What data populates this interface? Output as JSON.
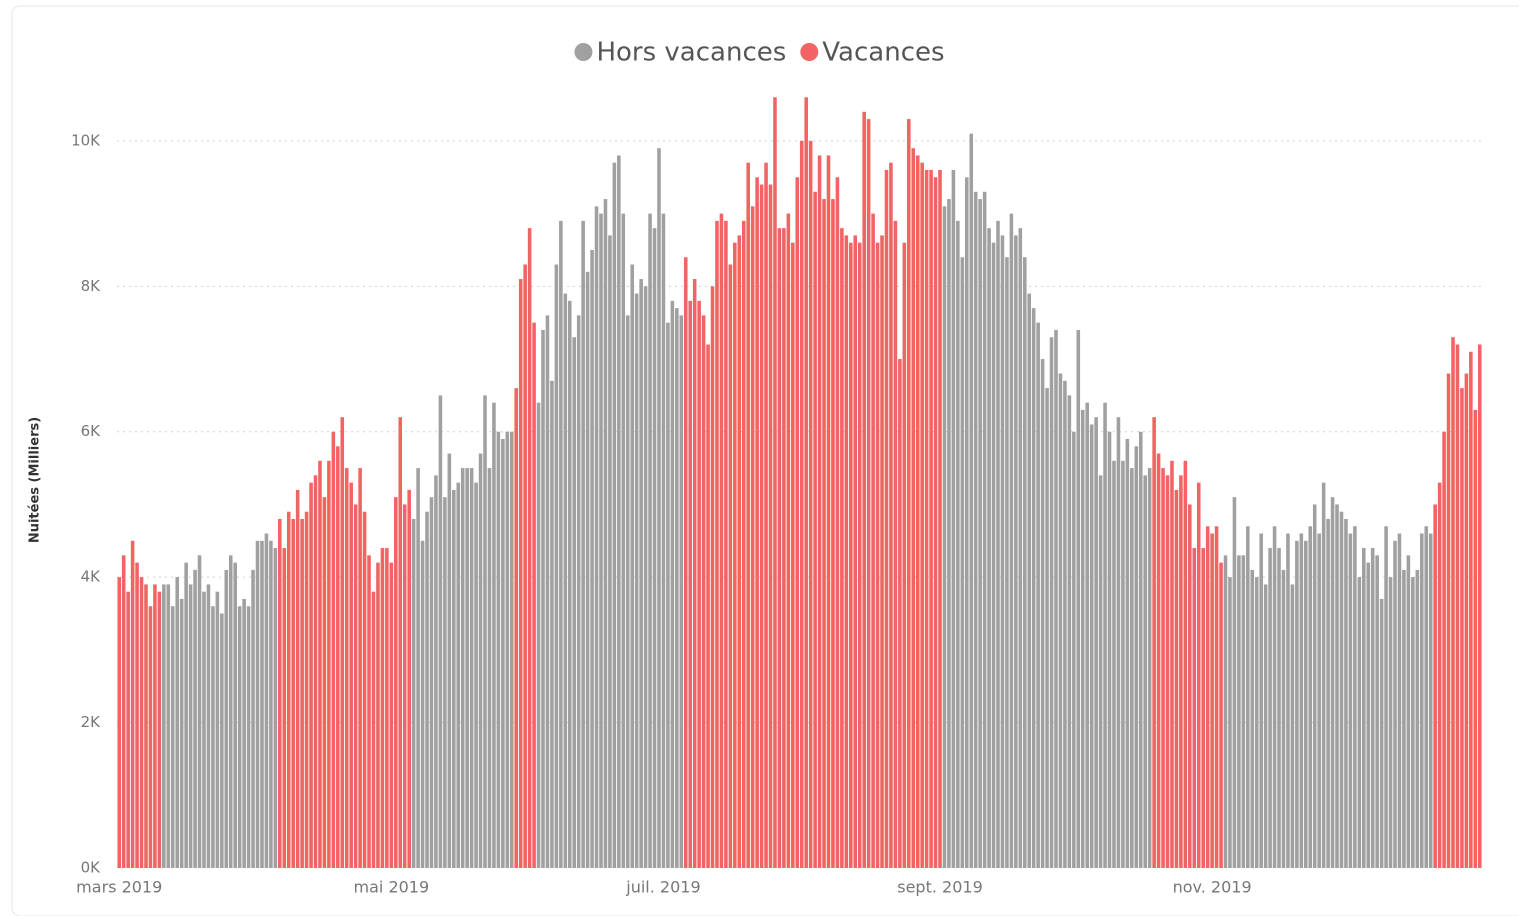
{
  "chart_data": {
    "type": "bar",
    "y_label": "Nuitées (Milliers)",
    "legend": "top",
    "grid": true,
    "ylim": [
      0,
      10700
    ],
    "yticks": [
      {
        "value": 0,
        "label": "0K"
      },
      {
        "value": 2000,
        "label": "2K"
      },
      {
        "value": 4000,
        "label": "4K"
      },
      {
        "value": 6000,
        "label": "6K"
      },
      {
        "value": 8000,
        "label": "8K"
      },
      {
        "value": 10000,
        "label": "10K"
      }
    ],
    "xlim": [
      -0.5,
      305.5
    ],
    "xticks": [
      {
        "value": 0,
        "label": "mars 2019"
      },
      {
        "value": 61,
        "label": "mai 2019"
      },
      {
        "value": 122,
        "label": "juil. 2019"
      },
      {
        "value": 184,
        "label": "sept. 2019"
      },
      {
        "value": 245,
        "label": "nov. 2019"
      }
    ],
    "x": [
      0,
      1,
      2,
      3,
      4,
      5,
      6,
      7,
      8,
      9,
      10,
      11,
      12,
      13,
      14,
      15,
      16,
      17,
      18,
      19,
      20,
      21,
      22,
      23,
      24,
      25,
      26,
      27,
      28,
      29,
      30,
      31,
      32,
      33,
      34,
      35,
      36,
      37,
      38,
      39,
      40,
      41,
      42,
      43,
      44,
      45,
      46,
      47,
      48,
      49,
      50,
      51,
      52,
      53,
      54,
      55,
      56,
      57,
      58,
      59,
      60,
      61,
      62,
      63,
      64,
      65,
      66,
      67,
      68,
      69,
      70,
      71,
      72,
      73,
      74,
      75,
      76,
      77,
      78,
      79,
      80,
      81,
      82,
      83,
      84,
      85,
      86,
      87,
      88,
      89,
      90,
      91,
      92,
      93,
      94,
      95,
      96,
      97,
      98,
      99,
      100,
      101,
      102,
      103,
      104,
      105,
      106,
      107,
      108,
      109,
      110,
      111,
      112,
      113,
      114,
      115,
      116,
      117,
      118,
      119,
      120,
      121,
      122,
      123,
      124,
      125,
      126,
      127,
      128,
      129,
      130,
      131,
      132,
      133,
      134,
      135,
      136,
      137,
      138,
      139,
      140,
      141,
      142,
      143,
      144,
      145,
      146,
      147,
      148,
      149,
      150,
      151,
      152,
      153,
      154,
      155,
      156,
      157,
      158,
      159,
      160,
      161,
      162,
      163,
      164,
      165,
      166,
      167,
      168,
      169,
      170,
      171,
      172,
      173,
      174,
      175,
      176,
      177,
      178,
      179,
      180,
      181,
      182,
      183,
      184,
      185,
      186,
      187,
      188,
      189,
      190,
      191,
      192,
      193,
      194,
      195,
      196,
      197,
      198,
      199,
      200,
      201,
      202,
      203,
      204,
      205,
      206,
      207,
      208,
      209,
      210,
      211,
      212,
      213,
      214,
      215,
      216,
      217,
      218,
      219,
      220,
      221,
      222,
      223,
      224,
      225,
      226,
      227,
      228,
      229,
      230,
      231,
      232,
      233,
      234,
      235,
      236,
      237,
      238,
      239,
      240,
      241,
      242,
      243,
      244,
      245,
      246,
      247,
      248,
      249,
      250,
      251,
      252,
      253,
      254,
      255,
      256,
      257,
      258,
      259,
      260,
      261,
      262,
      263,
      264,
      265,
      266,
      267,
      268,
      269,
      270,
      271,
      272,
      273,
      274,
      275,
      276,
      277,
      278,
      279,
      280,
      281,
      282,
      283,
      284,
      285,
      286,
      287,
      288,
      289,
      290,
      291,
      292,
      293,
      294,
      295,
      296,
      297,
      298,
      299,
      300,
      301,
      302,
      303,
      304,
      305
    ],
    "series": [
      {
        "name": "Hors vacances",
        "color": "#a0a0a0",
        "values": [
          null,
          null,
          null,
          null,
          null,
          null,
          null,
          null,
          null,
          null,
          3900,
          3900,
          3600,
          4000,
          3700,
          4200,
          3900,
          4100,
          4300,
          3800,
          3900,
          3600,
          3800,
          3500,
          4100,
          4300,
          4200,
          3600,
          3700,
          3600,
          4100,
          4500,
          4500,
          4600,
          4500,
          4400,
          null,
          null,
          null,
          null,
          null,
          null,
          null,
          null,
          null,
          null,
          null,
          null,
          null,
          null,
          null,
          null,
          null,
          null,
          null,
          null,
          null,
          null,
          null,
          null,
          null,
          null,
          null,
          null,
          null,
          null,
          4800,
          5500,
          4500,
          4900,
          5100,
          5400,
          6500,
          5100,
          5700,
          5200,
          5300,
          5500,
          5500,
          5500,
          5300,
          5700,
          6500,
          5500,
          6400,
          6000,
          5900,
          6000,
          6000,
          null,
          null,
          null,
          null,
          null,
          6400,
          7400,
          7600,
          6700,
          8300,
          8900,
          7900,
          7800,
          7300,
          7600,
          8900,
          8200,
          8500,
          9100,
          9000,
          9200,
          8700,
          9700,
          9800,
          9000,
          7600,
          8300,
          7900,
          8100,
          8000,
          9000,
          8800,
          9900,
          9000,
          7500,
          7800,
          7700,
          7600,
          null,
          null,
          null,
          null,
          null,
          null,
          null,
          null,
          null,
          null,
          null,
          null,
          null,
          null,
          null,
          null,
          null,
          null,
          null,
          null,
          null,
          null,
          null,
          null,
          null,
          null,
          null,
          null,
          null,
          null,
          null,
          null,
          null,
          null,
          null,
          null,
          null,
          null,
          null,
          null,
          null,
          null,
          null,
          null,
          null,
          null,
          null,
          null,
          null,
          null,
          null,
          null,
          null,
          null,
          null,
          null,
          null,
          null,
          9100,
          9200,
          9600,
          8900,
          8400,
          9500,
          10100,
          9300,
          9200,
          9300,
          8800,
          8600,
          8900,
          8700,
          8400,
          9000,
          8700,
          8800,
          8400,
          7900,
          7700,
          7500,
          7000,
          6600,
          7300,
          7400,
          6800,
          6700,
          6500,
          6000,
          7400,
          6300,
          6400,
          6100,
          6200,
          5400,
          6400,
          6000,
          5600,
          6200,
          5600,
          5900,
          5500,
          5800,
          6000,
          5400,
          5500,
          null,
          null,
          null,
          null,
          null,
          null,
          null,
          null,
          null,
          null,
          null,
          null,
          null,
          null,
          null,
          null,
          4300,
          4000,
          5100,
          4300,
          4300,
          4700,
          4100,
          4000,
          4600,
          3900,
          4400,
          4700,
          4400,
          4100,
          4600,
          3900,
          4500,
          4600,
          4500,
          4700,
          5000,
          4600,
          5300,
          4800,
          5100,
          5000,
          4900,
          4800,
          4600,
          4700,
          4000,
          4400,
          4200,
          4400,
          4300,
          3700,
          4700,
          4000,
          4500,
          4600,
          4100,
          4300,
          4000,
          4100,
          4600,
          4700,
          4600,
          null,
          null,
          null,
          null,
          null,
          null,
          null,
          null,
          null,
          null,
          null
        ]
      },
      {
        "name": "Vacances",
        "color": "#f26464",
        "values": [
          4000,
          4300,
          3800,
          4500,
          4200,
          4000,
          3900,
          3600,
          3900,
          3800,
          null,
          null,
          null,
          null,
          null,
          null,
          null,
          null,
          null,
          null,
          null,
          null,
          null,
          null,
          null,
          null,
          null,
          null,
          null,
          null,
          null,
          null,
          null,
          null,
          null,
          null,
          4800,
          4400,
          4900,
          4800,
          5200,
          4800,
          4900,
          5300,
          5400,
          5600,
          5100,
          5600,
          6000,
          5800,
          6200,
          5500,
          5300,
          5000,
          5500,
          4900,
          4300,
          3800,
          4200,
          4400,
          4400,
          4200,
          5100,
          6200,
          5000,
          5200,
          null,
          null,
          null,
          null,
          null,
          null,
          null,
          null,
          null,
          null,
          null,
          null,
          null,
          null,
          null,
          null,
          null,
          null,
          null,
          null,
          null,
          null,
          null,
          6600,
          8100,
          8300,
          8800,
          7500,
          null,
          null,
          null,
          null,
          null,
          null,
          null,
          null,
          null,
          null,
          null,
          null,
          null,
          null,
          null,
          null,
          null,
          null,
          null,
          null,
          null,
          null,
          null,
          null,
          null,
          null,
          null,
          null,
          null,
          null,
          null,
          null,
          null,
          8400,
          7800,
          8100,
          7800,
          7600,
          7200,
          8000,
          8900,
          9000,
          8900,
          8300,
          8600,
          8700,
          8900,
          9700,
          9100,
          9500,
          9400,
          9700,
          9400,
          10600,
          8800,
          8800,
          9000,
          8600,
          9500,
          10000,
          10600,
          10000,
          9300,
          9800,
          9200,
          9800,
          9200,
          9500,
          8800,
          8700,
          8600,
          8700,
          8600,
          10400,
          10300,
          9000,
          8600,
          8700,
          9600,
          9700,
          8900,
          7000,
          8600,
          10300,
          9900,
          9800,
          9700,
          9600,
          9600,
          9500,
          9600,
          null,
          null,
          null,
          null,
          null,
          null,
          null,
          null,
          null,
          null,
          null,
          null,
          null,
          null,
          null,
          null,
          null,
          null,
          null,
          null,
          null,
          null,
          null,
          null,
          null,
          null,
          null,
          null,
          null,
          null,
          null,
          null,
          null,
          null,
          null,
          null,
          null,
          null,
          null,
          null,
          null,
          null,
          null,
          null,
          null,
          null,
          null,
          6200,
          5700,
          5500,
          5400,
          5600,
          5200,
          5400,
          5600,
          5000,
          4400,
          5300,
          4400,
          4700,
          4600,
          4700,
          4200,
          null,
          null,
          null,
          null,
          null,
          null,
          null,
          null,
          null,
          null,
          null,
          null,
          null,
          null,
          null,
          null,
          null,
          null,
          null,
          null,
          null,
          null,
          null,
          null,
          null,
          null,
          null,
          null,
          null,
          null,
          null,
          null,
          null,
          null,
          null,
          null,
          null,
          null,
          null,
          null,
          null,
          null,
          null,
          null,
          null,
          null,
          null,
          5000,
          5300,
          6000,
          6800,
          7300,
          7200,
          6600,
          6800,
          7100,
          6300,
          7200
        ]
      }
    ]
  }
}
